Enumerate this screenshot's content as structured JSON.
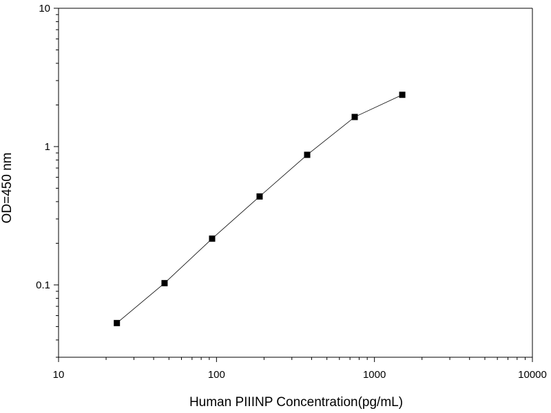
{
  "chart_data": {
    "type": "line",
    "title": "",
    "xlabel": "Human PIIINP  Concentration(pg/mL)",
    "ylabel": "OD=450 nm",
    "x_scale": "log",
    "y_scale": "log",
    "xlim": [
      10,
      10000
    ],
    "ylim": [
      0.03,
      10
    ],
    "x_ticks": [
      {
        "value": 10,
        "label": "10"
      },
      {
        "value": 100,
        "label": "100"
      },
      {
        "value": 1000,
        "label": "1000"
      },
      {
        "value": 10000,
        "label": "10000"
      }
    ],
    "y_ticks": [
      {
        "value": 0.1,
        "label": "0.1"
      },
      {
        "value": 1,
        "label": "1"
      },
      {
        "value": 10,
        "label": "10"
      }
    ],
    "grid": false,
    "marker": "square",
    "series": [
      {
        "x": [
          23.4,
          46.9,
          93.8,
          187.5,
          375,
          750,
          1500
        ],
        "y": [
          0.053,
          0.103,
          0.216,
          0.436,
          0.872,
          1.637,
          2.368
        ]
      }
    ],
    "colors": {
      "line": "#000000",
      "marker": "#000000",
      "axis": "#000000"
    }
  }
}
